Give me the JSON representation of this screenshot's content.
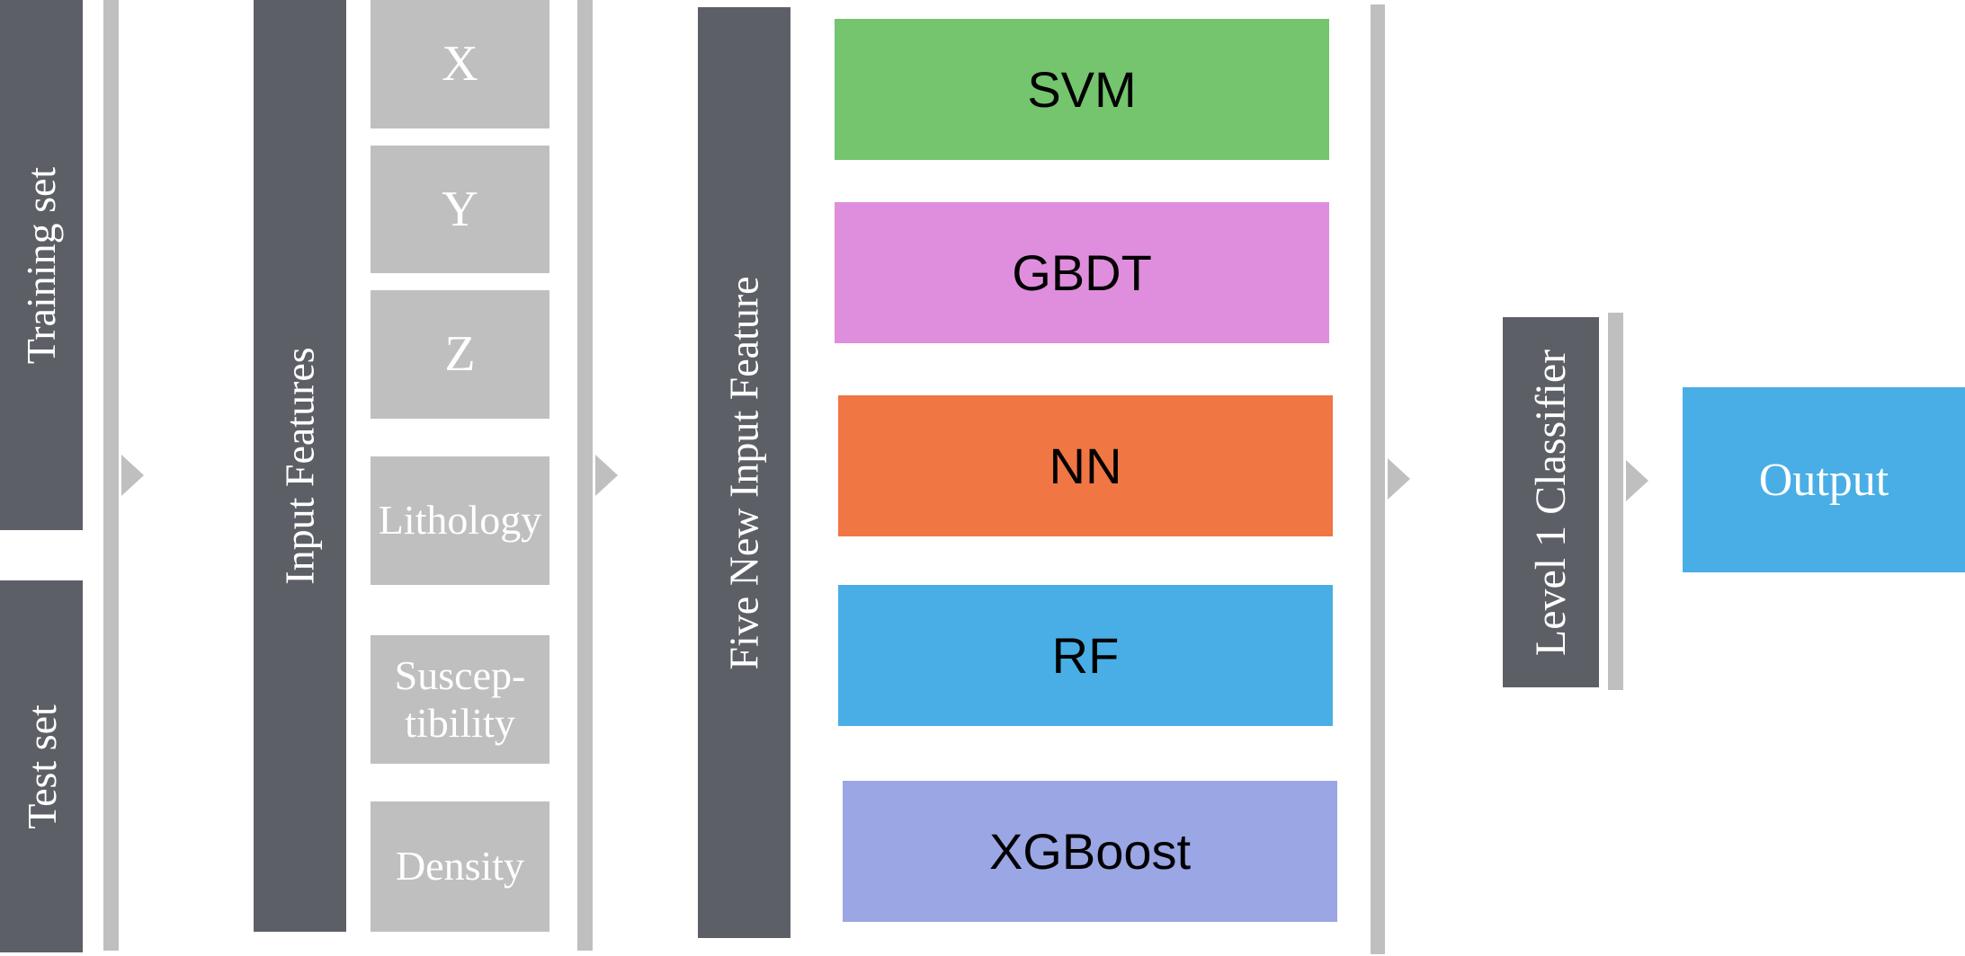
{
  "datasets": {
    "training": "Training set",
    "test": "Test set"
  },
  "input_features": {
    "title": "Input Features",
    "items": [
      {
        "label": "X"
      },
      {
        "label": "Y"
      },
      {
        "label": "Z"
      },
      {
        "label": "Lithology"
      },
      {
        "label": "Suscep-\ntibility"
      },
      {
        "label": "Density"
      }
    ]
  },
  "new_features": {
    "title": "Five New Input Feature"
  },
  "models": [
    {
      "label": "SVM",
      "color": "#74c56e"
    },
    {
      "label": "GBDT",
      "color": "#df8edd"
    },
    {
      "label": "NN",
      "color": "#f07643"
    },
    {
      "label": "RF",
      "color": "#49aee5"
    },
    {
      "label": "XGBoost",
      "color": "#9ba6e5"
    }
  ],
  "level1": {
    "title": "Level 1 Classifier"
  },
  "output": {
    "label": "Output",
    "color": "#49aee5"
  },
  "colors": {
    "dark_panel": "#5c6066",
    "light_bar": "#bfbfbf"
  }
}
